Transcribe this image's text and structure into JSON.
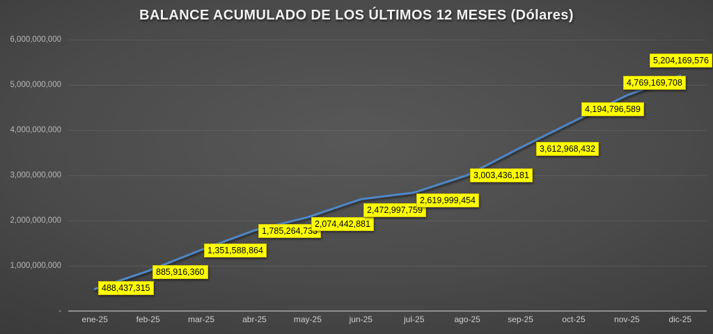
{
  "chart_data": {
    "type": "line",
    "title": "BALANCE ACUMULADO DE LOS ÚLTIMOS 12 MESES (Dólares)",
    "categories": [
      "ene-25",
      "feb-25",
      "mar-25",
      "abr-25",
      "may-25",
      "jun-25",
      "jul-25",
      "ago-25",
      "sep-25",
      "oct-25",
      "nov-25",
      "dic-25"
    ],
    "series": [
      {
        "name": "Balance acumulado",
        "values": [
          488437315,
          885916360,
          1351588864,
          1785264733,
          2074442881,
          2472997759,
          2619999454,
          3003436181,
          3612968432,
          4194796589,
          4769169708,
          5204169576
        ]
      }
    ],
    "data_labels": [
      "488,437,315",
      "885,916,360",
      "1,351,588,864",
      "1,785,264,733",
      "2,074,442,881",
      "2,472,997,759",
      "2,619,999,454",
      "3,003,436,181",
      "3,612,968,432",
      "4,194,796,589",
      "4,769,169,708",
      "5,204,169,576"
    ],
    "yticks": [
      "6,000,000,000",
      "5,000,000,000",
      "4,000,000,000",
      "3,000,000,000",
      "2,000,000,000",
      "1,000,000,000",
      "-"
    ],
    "ylim": [
      0,
      6000000000
    ],
    "xlabel": "",
    "ylabel": "",
    "grid": true,
    "legend_position": "none",
    "colors": {
      "line": "#4f86c6",
      "label_background": "#ffff00",
      "label_text": "#000000",
      "background_center": "#585858",
      "background_edge": "#232323",
      "title_text": "#f2f2f2",
      "axis_text": "#cfcfcf"
    }
  }
}
